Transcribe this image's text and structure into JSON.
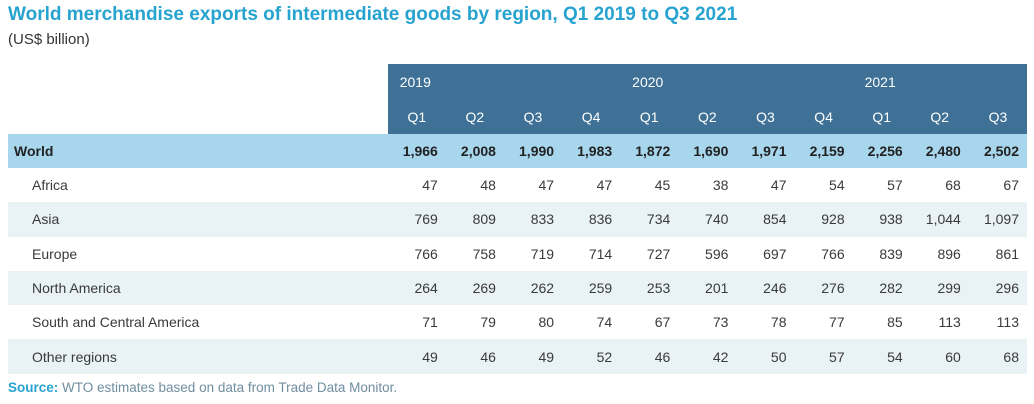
{
  "title_main": "World merchandise exports of intermediate goods by region, ",
  "title_period": "Q1 2019 to Q3 2021",
  "subtitle": "(US$ billion)",
  "years": [
    {
      "label": "2019",
      "span": 4
    },
    {
      "label": "2020",
      "span": 4
    },
    {
      "label": "2021",
      "span": 3
    }
  ],
  "quarters": [
    "Q1",
    "Q2",
    "Q3",
    "Q4",
    "Q1",
    "Q2",
    "Q3",
    "Q4",
    "Q1",
    "Q2",
    "Q3"
  ],
  "world": {
    "label": "World",
    "values": [
      "1,966",
      "2,008",
      "1,990",
      "1,983",
      "1,872",
      "1,690",
      "1,971",
      "2,159",
      "2,256",
      "2,480",
      "2,502"
    ]
  },
  "regions": [
    {
      "label": "Africa",
      "values": [
        "47",
        "48",
        "47",
        "47",
        "45",
        "38",
        "47",
        "54",
        "57",
        "68",
        "67"
      ]
    },
    {
      "label": "Asia",
      "values": [
        "769",
        "809",
        "833",
        "836",
        "734",
        "740",
        "854",
        "928",
        "938",
        "1,044",
        "1,097"
      ]
    },
    {
      "label": "Europe",
      "values": [
        "766",
        "758",
        "719",
        "714",
        "727",
        "596",
        "697",
        "766",
        "839",
        "896",
        "861"
      ]
    },
    {
      "label": "North America",
      "values": [
        "264",
        "269",
        "262",
        "259",
        "253",
        "201",
        "246",
        "276",
        "282",
        "299",
        "296"
      ]
    },
    {
      "label": "South and Central America",
      "values": [
        "71",
        "79",
        "80",
        "74",
        "67",
        "73",
        "78",
        "77",
        "85",
        "113",
        "113"
      ]
    },
    {
      "label": "Other regions",
      "values": [
        "49",
        "46",
        "49",
        "52",
        "46",
        "42",
        "50",
        "57",
        "54",
        "60",
        "68"
      ]
    }
  ],
  "source_label": "Source:",
  "source_text": " WTO estimates based on data from Trade Data Monitor."
}
